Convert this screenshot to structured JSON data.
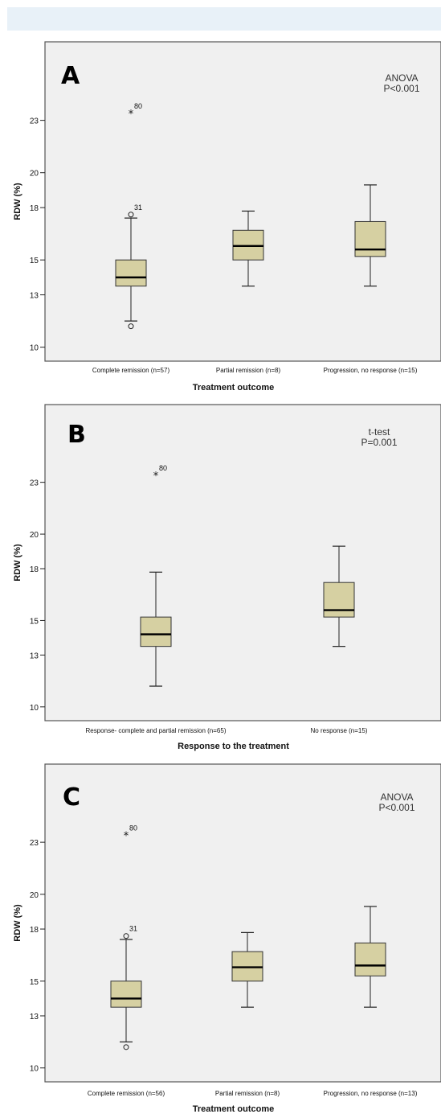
{
  "colors": {
    "plot_bg": "#f0f0f0",
    "box_fill": "#d6d0a2",
    "frame": "#555555",
    "top_bar": "#e8f1f8"
  },
  "chart_data": [
    {
      "type": "box",
      "panel_label": "A",
      "stat_test": "ANOVA",
      "p_value": "P<0.001",
      "ylabel": "RDW (%)",
      "xlabel": "Treatment outcome",
      "ylim": [
        9.2,
        27.5
      ],
      "yticks": [
        10,
        13,
        15,
        18,
        20,
        23
      ],
      "categories": [
        "Complete remission (n=57)",
        "Partial remission (n=8)",
        "Progression, no response (n=15)"
      ],
      "boxes": [
        {
          "low": 11.5,
          "q1": 13.5,
          "median": 14.0,
          "q3": 15.0,
          "high": 17.4
        },
        {
          "low": 13.5,
          "q1": 15.0,
          "median": 15.8,
          "q3": 16.7,
          "high": 17.8
        },
        {
          "low": 13.5,
          "q1": 15.2,
          "median": 15.6,
          "q3": 17.2,
          "high": 19.3
        }
      ],
      "outliers": [
        {
          "category": 0,
          "value": 23.4,
          "marker": "star",
          "label": "80"
        },
        {
          "category": 0,
          "value": 17.6,
          "marker": "circle",
          "label": "31"
        },
        {
          "category": 0,
          "value": 11.2,
          "marker": "circle",
          "label": ""
        }
      ]
    },
    {
      "type": "box",
      "panel_label": "B",
      "stat_test": "t-test",
      "p_value": "P=0.001",
      "ylabel": "RDW (%)",
      "xlabel": "Response to the treatment",
      "ylim": [
        9.2,
        27.5
      ],
      "yticks": [
        10,
        13,
        15,
        18,
        20,
        23
      ],
      "categories": [
        "Response- complete and partial remission (n=65)",
        "No response (n=15)"
      ],
      "boxes": [
        {
          "low": 11.2,
          "q1": 13.5,
          "median": 14.2,
          "q3": 15.2,
          "high": 17.8
        },
        {
          "low": 13.5,
          "q1": 15.2,
          "median": 15.6,
          "q3": 17.2,
          "high": 19.3
        }
      ],
      "outliers": [
        {
          "category": 0,
          "value": 23.4,
          "marker": "star",
          "label": "80"
        }
      ]
    },
    {
      "type": "box",
      "panel_label": "C",
      "stat_test": "ANOVA",
      "p_value": "P<0.001",
      "ylabel": "RDW (%)",
      "xlabel": "Treatment outcome",
      "ylim": [
        9.2,
        27.5
      ],
      "yticks": [
        10,
        13,
        15,
        18,
        20,
        23
      ],
      "categories": [
        "Complete remission (n=56)",
        "Partial remission (n=8)",
        "Progression, no response (n=13)"
      ],
      "boxes": [
        {
          "low": 11.5,
          "q1": 13.5,
          "median": 14.0,
          "q3": 15.0,
          "high": 17.4
        },
        {
          "low": 13.5,
          "q1": 15.0,
          "median": 15.8,
          "q3": 16.7,
          "high": 17.8
        },
        {
          "low": 13.5,
          "q1": 15.3,
          "median": 15.9,
          "q3": 17.2,
          "high": 19.3
        }
      ],
      "outliers": [
        {
          "category": 0,
          "value": 23.4,
          "marker": "star",
          "label": "80"
        },
        {
          "category": 0,
          "value": 17.6,
          "marker": "circle",
          "label": "31"
        },
        {
          "category": 0,
          "value": 11.2,
          "marker": "circle",
          "label": ""
        }
      ]
    }
  ]
}
